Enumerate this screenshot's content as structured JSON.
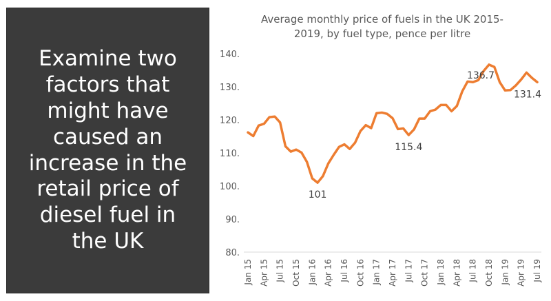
{
  "question": {
    "text": "Examine two factors that might have caused an increase in the retail price of diesel fuel in the UK"
  },
  "colors": {
    "panel_background": "#3b3b3b",
    "series_line": "#ed7d31",
    "axis_text": "#595959"
  },
  "chart_data": {
    "type": "line",
    "title_line1": "Average monthly price of fuels in the UK 2015-",
    "title_line2": "2019, by fuel type, pence per litre",
    "xlabel": "",
    "ylabel": "",
    "ylim": [
      80,
      140
    ],
    "y_ticks": [
      "80.",
      "90.",
      "100.",
      "110.",
      "120.",
      "130.",
      "140."
    ],
    "x_tick_labels": [
      "Jan 15",
      "Apr 15",
      "Jul 15",
      "Oct 15",
      "Jan 16",
      "Apr 16",
      "Jul 16",
      "Oct 16",
      "Jan 17",
      "Apr 17",
      "Jul 17",
      "Oct 17",
      "Jan 18",
      "Apr 18",
      "Jul 18",
      "Oct 18",
      "Jan 19",
      "Apr 19",
      "Jul 19"
    ],
    "x": [
      "Jan 15",
      "Feb 15",
      "Mar 15",
      "Apr 15",
      "May 15",
      "Jun 15",
      "Jul 15",
      "Aug 15",
      "Sep 15",
      "Oct 15",
      "Nov 15",
      "Dec 15",
      "Jan 16",
      "Feb 16",
      "Mar 16",
      "Apr 16",
      "May 16",
      "Jun 16",
      "Jul 16",
      "Aug 16",
      "Sep 16",
      "Oct 16",
      "Nov 16",
      "Dec 16",
      "Jan 17",
      "Feb 17",
      "Mar 17",
      "Apr 17",
      "May 17",
      "Jun 17",
      "Jul 17",
      "Aug 17",
      "Sep 17",
      "Oct 17",
      "Nov 17",
      "Dec 17",
      "Jan 18",
      "Feb 18",
      "Mar 18",
      "Apr 18",
      "May 18",
      "Jun 18",
      "Jul 18",
      "Aug 18",
      "Sep 18",
      "Oct 18",
      "Nov 18",
      "Dec 18",
      "Jan 19",
      "Feb 19",
      "Mar 19",
      "Apr 19",
      "May 19",
      "Jun 19",
      "Jul 19"
    ],
    "series": [
      {
        "values": [
          116.2,
          115.1,
          118.3,
          118.8,
          120.8,
          121.0,
          119.2,
          112.0,
          110.4,
          111.0,
          110.1,
          107.3,
          102.3,
          101.0,
          103.0,
          106.8,
          109.4,
          111.8,
          112.6,
          111.2,
          113.1,
          116.6,
          118.4,
          117.5,
          122.0,
          122.2,
          121.8,
          120.5,
          117.2,
          117.4,
          115.4,
          117.1,
          120.4,
          120.4,
          122.6,
          123.1,
          124.5,
          124.5,
          122.6,
          124.2,
          128.6,
          131.6,
          131.4,
          132.0,
          134.8,
          136.7,
          136.0,
          131.4,
          128.9,
          129.0,
          130.4,
          132.2,
          134.3,
          132.7,
          131.4
        ],
        "color": "#ed7d31"
      }
    ],
    "annotations": [
      {
        "index": 13,
        "text": "101",
        "placement": "below"
      },
      {
        "index": 30,
        "text": "115.4",
        "placement": "below"
      },
      {
        "index": 45,
        "text": "136.7",
        "placement": "below-left"
      },
      {
        "index": 54,
        "text": "131.4",
        "placement": "below-left"
      }
    ],
    "grid": false,
    "legend": "none"
  }
}
